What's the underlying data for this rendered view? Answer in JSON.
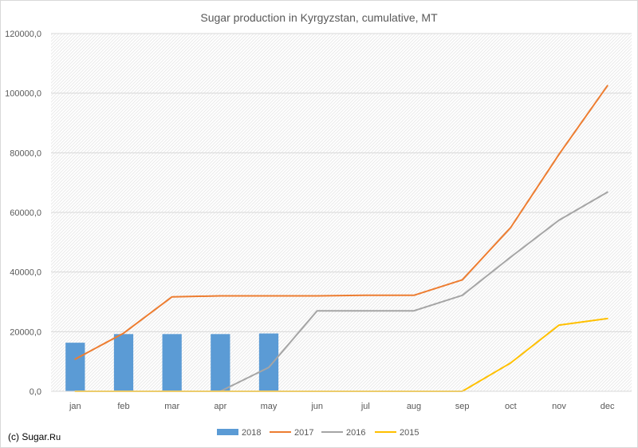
{
  "chart_data": {
    "type": "bar",
    "title": "Sugar production in Kyrgyzstan, cumulative, MT",
    "categories": [
      "jan",
      "feb",
      "mar",
      "apr",
      "may",
      "jun",
      "jul",
      "aug",
      "sep",
      "oct",
      "nov",
      "dec"
    ],
    "y_ticks": [
      "0,0",
      "20000,0",
      "40000,0",
      "60000,0",
      "80000,0",
      "100000,0",
      "120000,0"
    ],
    "ylim": [
      0,
      120000
    ],
    "grid": true,
    "legend_position": "bottom",
    "series": [
      {
        "name": "2018",
        "kind": "bar",
        "color": "#5b9bd5",
        "values": [
          16300,
          19200,
          19200,
          19200,
          19400,
          null,
          null,
          null,
          null,
          null,
          null,
          null
        ]
      },
      {
        "name": "2017",
        "kind": "line",
        "color": "#ed7d31",
        "values": [
          10800,
          19500,
          31700,
          32000,
          32000,
          32000,
          32200,
          32200,
          37400,
          54900,
          79500,
          102500
        ]
      },
      {
        "name": "2016",
        "kind": "line",
        "color": "#a5a5a5",
        "values": [
          null,
          null,
          null,
          0,
          8000,
          27000,
          27000,
          27000,
          32200,
          45000,
          57400,
          66800
        ]
      },
      {
        "name": "2015",
        "kind": "line",
        "color": "#ffc000",
        "values": [
          0,
          0,
          0,
          0,
          0,
          0,
          0,
          0,
          0,
          9500,
          22200,
          24400
        ]
      }
    ]
  },
  "credit": {
    "prefix": "(c) Sugar.",
    "suffix": "Ru"
  }
}
